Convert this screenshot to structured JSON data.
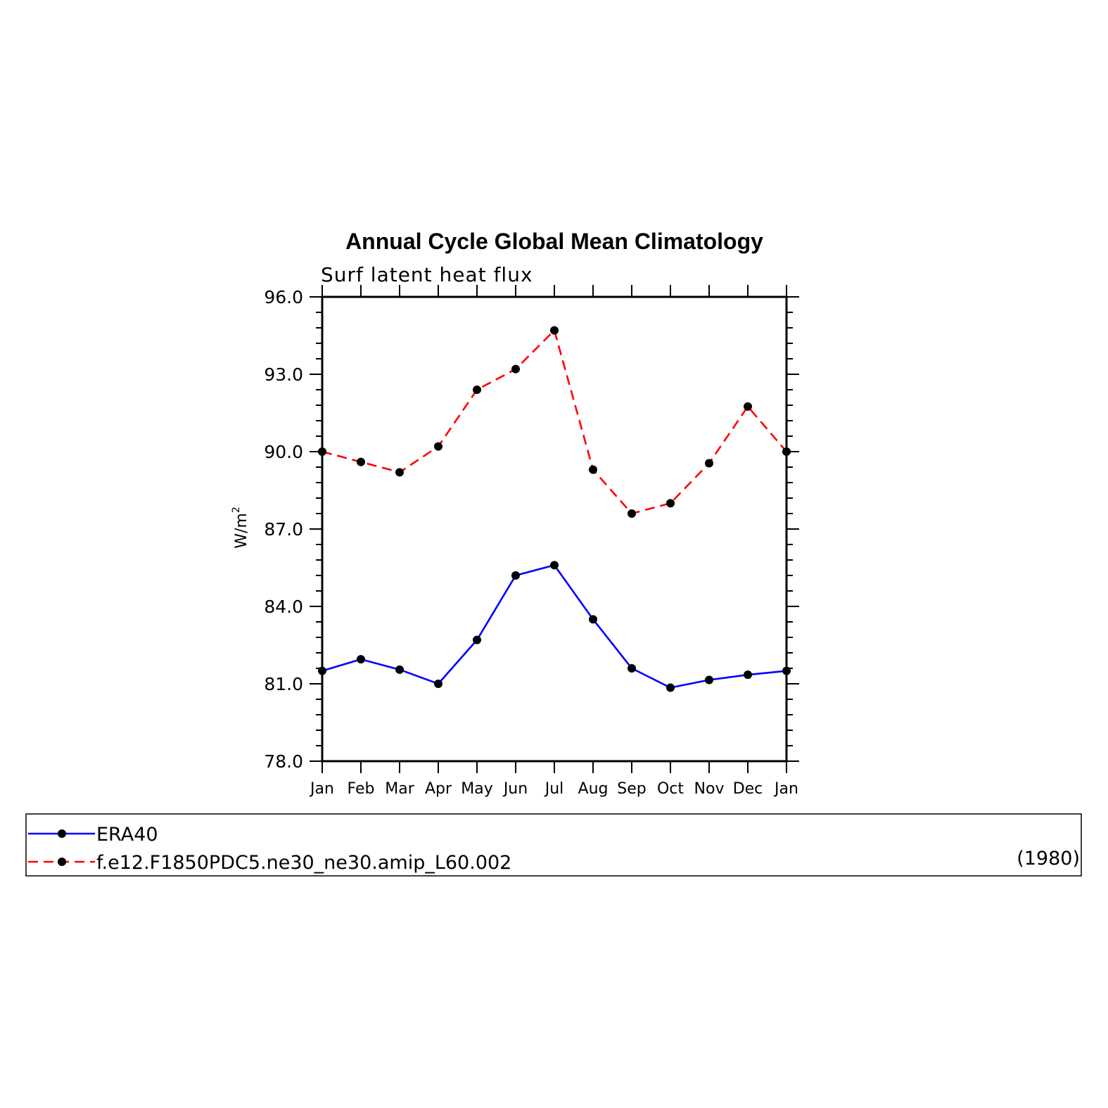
{
  "chart_data": {
    "type": "line",
    "title": "Annual Cycle Global Mean Climatology",
    "subtitle": "Surf latent heat flux",
    "ylabel": "W/m",
    "ylabel_superscript": "2",
    "categories": [
      "Jan",
      "Feb",
      "Mar",
      "Apr",
      "May",
      "Jun",
      "Jul",
      "Aug",
      "Sep",
      "Oct",
      "Nov",
      "Dec",
      "Jan"
    ],
    "ylim": [
      78.0,
      96.0
    ],
    "yticks": [
      "78.0",
      "81.0",
      "84.0",
      "87.0",
      "90.0",
      "93.0",
      "96.0"
    ],
    "series": [
      {
        "name": "ERA40",
        "color": "#0000ff",
        "dash": "solid",
        "values": [
          81.5,
          81.95,
          81.55,
          81.0,
          82.7,
          85.2,
          85.6,
          83.5,
          81.6,
          80.85,
          81.15,
          81.35,
          81.5
        ]
      },
      {
        "name": "f.e12.F1850PDC5.ne30_ne30.amip_L60.002",
        "color": "#ff0000",
        "dash": "dashed",
        "values": [
          90.0,
          89.6,
          89.2,
          90.2,
          92.4,
          93.2,
          94.7,
          89.3,
          87.6,
          88.0,
          89.55,
          91.75,
          90.0
        ]
      }
    ],
    "legend_note": "(1980)",
    "legend_position": "bottom",
    "grid": false
  }
}
